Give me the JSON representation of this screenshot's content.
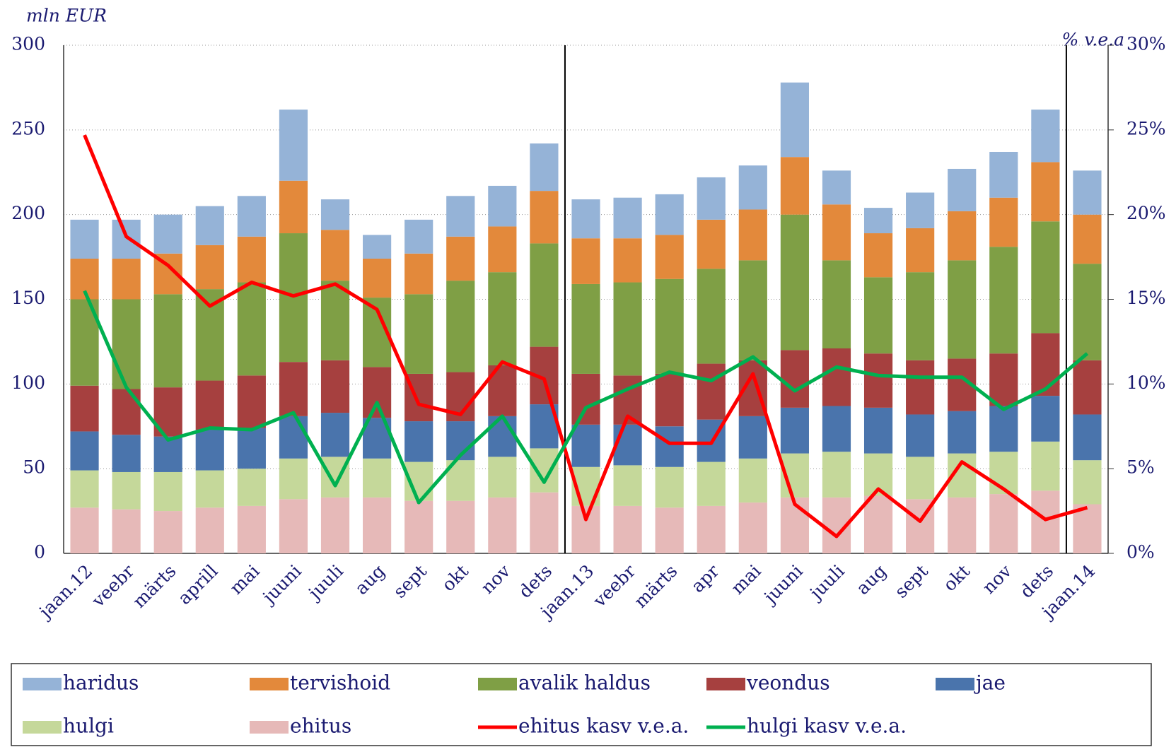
{
  "chart_data": {
    "type": "bar",
    "y_label": "mln EUR",
    "y2_label": "% v.e.a",
    "categories": [
      "jaan.12",
      "veebr",
      "märts",
      "aprill",
      "mai",
      "juuni",
      "juuli",
      "aug",
      "sept",
      "okt",
      "nov",
      "dets",
      "jaan.13",
      "veebr",
      "märts",
      "apr",
      "mai",
      "juuni",
      "juuli",
      "aug",
      "sept",
      "okt",
      "nov",
      "dets",
      "jaan.14"
    ],
    "series": [
      {
        "name": "haridus",
        "color": "#95b3d7",
        "values": [
          23,
          23,
          23,
          23,
          24,
          42,
          18,
          14,
          20,
          24,
          24,
          28,
          23,
          24,
          24,
          25,
          26,
          44,
          20,
          15,
          21,
          25,
          27,
          31,
          26
        ]
      },
      {
        "name": "tervishoid",
        "color": "#e3893b",
        "values": [
          24,
          24,
          24,
          26,
          27,
          31,
          30,
          23,
          24,
          26,
          27,
          31,
          27,
          26,
          26,
          29,
          30,
          34,
          33,
          26,
          26,
          29,
          29,
          35,
          29
        ]
      },
      {
        "name": "avalik haldus",
        "color": "#7f9f45",
        "values": [
          51,
          53,
          55,
          54,
          55,
          76,
          47,
          41,
          47,
          54,
          55,
          61,
          53,
          55,
          56,
          56,
          59,
          80,
          52,
          45,
          52,
          58,
          63,
          66,
          57
        ]
      },
      {
        "name": "veondus",
        "color": "#a6403f",
        "values": [
          27,
          27,
          29,
          29,
          31,
          32,
          31,
          30,
          28,
          29,
          30,
          34,
          30,
          29,
          31,
          33,
          33,
          34,
          34,
          32,
          32,
          31,
          31,
          37,
          32
        ]
      },
      {
        "name": "jae",
        "color": "#4a74ac",
        "values": [
          23,
          22,
          21,
          24,
          24,
          25,
          26,
          24,
          24,
          23,
          24,
          26,
          25,
          24,
          24,
          25,
          25,
          27,
          27,
          27,
          25,
          25,
          27,
          27,
          27
        ]
      },
      {
        "name": "hulgi",
        "color": "#c5d89a",
        "values": [
          22,
          22,
          23,
          22,
          22,
          24,
          24,
          23,
          23,
          24,
          24,
          26,
          23,
          24,
          24,
          26,
          26,
          26,
          27,
          25,
          25,
          26,
          25,
          29,
          26
        ]
      },
      {
        "name": "ehitus",
        "color": "#e6b9b8",
        "values": [
          27,
          26,
          25,
          27,
          28,
          32,
          33,
          33,
          31,
          31,
          33,
          36,
          28,
          28,
          27,
          28,
          30,
          33,
          33,
          34,
          32,
          33,
          35,
          37,
          29
        ]
      },
      {
        "name": "ehitus kasv v.e.a.",
        "color": "#ff0000",
        "type": "line",
        "axis": "y2",
        "values": [
          24.7,
          18.7,
          17.0,
          14.6,
          16.0,
          15.2,
          15.9,
          14.4,
          8.8,
          8.2,
          11.3,
          10.3,
          2.0,
          8.1,
          6.5,
          6.5,
          10.6,
          2.9,
          1.0,
          3.8,
          1.9,
          5.4,
          3.8,
          2.0,
          2.7
        ]
      },
      {
        "name": "hulgi kasv v.e.a.",
        "color": "#00b050",
        "type": "line",
        "axis": "y2",
        "values": [
          15.5,
          9.8,
          6.7,
          7.4,
          7.3,
          8.3,
          4.0,
          8.9,
          3.0,
          5.8,
          8.1,
          4.2,
          8.6,
          9.7,
          10.7,
          10.2,
          11.6,
          9.6,
          11.0,
          10.5,
          10.4,
          10.4,
          8.5,
          9.7,
          11.8
        ]
      }
    ],
    "ylim": [
      0,
      300
    ],
    "yticks": [
      0,
      50,
      100,
      150,
      200,
      250,
      300
    ],
    "y2lim": [
      0,
      30
    ],
    "y2ticks": [
      {
        "value": 0,
        "label": "0%"
      },
      {
        "value": 5,
        "label": "5%"
      },
      {
        "value": 10,
        "label": "10%"
      },
      {
        "value": 15,
        "label": "15%"
      },
      {
        "value": 20,
        "label": "20%"
      },
      {
        "value": 25,
        "label": "25%"
      },
      {
        "value": 30,
        "label": "30%"
      }
    ],
    "grid": true,
    "stacked": true,
    "legend": "bottom"
  }
}
